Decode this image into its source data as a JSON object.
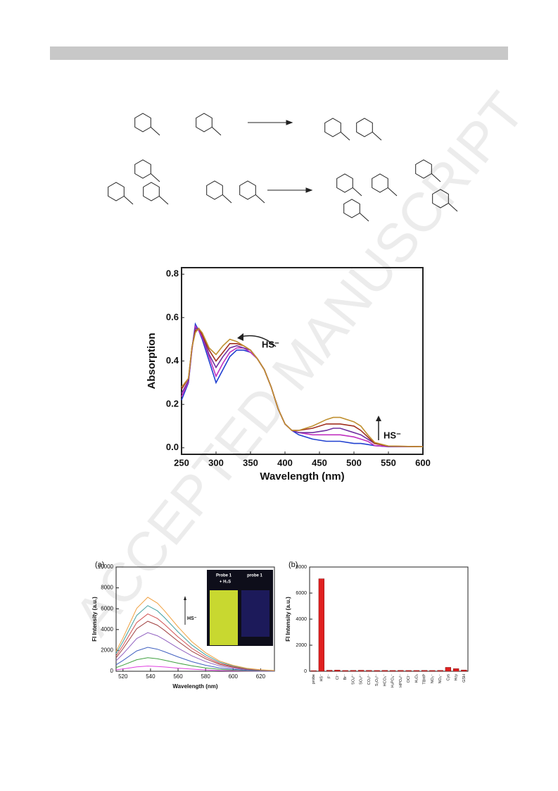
{
  "watermark": "ACCEPTED MANUSCRIPT",
  "chart_data": [
    {
      "type": "line",
      "x_label": "Wavelength (nm)",
      "y_label": "Absorption",
      "x": [
        250,
        260,
        265,
        270,
        275,
        280,
        290,
        300,
        310,
        320,
        330,
        340,
        350,
        360,
        370,
        380,
        390,
        400,
        410,
        420,
        440,
        460,
        470,
        480,
        500,
        510,
        520,
        530,
        550,
        600
      ],
      "xlim": [
        250,
        600
      ],
      "ylim": [
        -0.03,
        0.83
      ],
      "xticks": [
        250,
        300,
        350,
        400,
        450,
        500,
        550,
        600
      ],
      "yticks": [
        {
          "value": 0,
          "label": "0.0"
        },
        0.2,
        0.4,
        0.6,
        0.8
      ],
      "annotations": [
        "HS⁻",
        "HS⁻"
      ],
      "series": [
        {
          "color": "#2040d0",
          "values": [
            0.22,
            0.3,
            0.45,
            0.57,
            0.54,
            0.5,
            0.4,
            0.3,
            0.36,
            0.42,
            0.45,
            0.45,
            0.44,
            0.41,
            0.36,
            0.28,
            0.18,
            0.11,
            0.08,
            0.06,
            0.04,
            0.03,
            0.03,
            0.03,
            0.02,
            0.02,
            0.015,
            0.01,
            0.005,
            0.005
          ]
        },
        {
          "color": "#c030c0",
          "values": [
            0.235,
            0.305,
            0.45,
            0.56,
            0.54,
            0.51,
            0.42,
            0.33,
            0.39,
            0.44,
            0.46,
            0.46,
            0.44,
            0.41,
            0.36,
            0.28,
            0.18,
            0.11,
            0.08,
            0.07,
            0.06,
            0.06,
            0.06,
            0.06,
            0.05,
            0.04,
            0.03,
            0.01,
            0.006,
            0.005
          ]
        },
        {
          "color": "#7030a0",
          "values": [
            0.25,
            0.31,
            0.46,
            0.55,
            0.55,
            0.52,
            0.43,
            0.37,
            0.42,
            0.46,
            0.47,
            0.46,
            0.45,
            0.41,
            0.36,
            0.28,
            0.18,
            0.11,
            0.08,
            0.07,
            0.07,
            0.08,
            0.09,
            0.09,
            0.07,
            0.06,
            0.04,
            0.02,
            0.007,
            0.005
          ]
        },
        {
          "color": "#a03020",
          "values": [
            0.27,
            0.32,
            0.46,
            0.54,
            0.55,
            0.52,
            0.45,
            0.4,
            0.44,
            0.48,
            0.48,
            0.47,
            0.45,
            0.41,
            0.36,
            0.28,
            0.18,
            0.11,
            0.08,
            0.08,
            0.09,
            0.11,
            0.11,
            0.11,
            0.1,
            0.08,
            0.05,
            0.02,
            0.008,
            0.005
          ]
        },
        {
          "color": "#c09030",
          "values": [
            0.28,
            0.32,
            0.46,
            0.53,
            0.55,
            0.53,
            0.46,
            0.43,
            0.47,
            0.5,
            0.49,
            0.47,
            0.45,
            0.41,
            0.36,
            0.28,
            0.18,
            0.11,
            0.08,
            0.08,
            0.1,
            0.13,
            0.14,
            0.14,
            0.12,
            0.1,
            0.06,
            0.025,
            0.008,
            0.005
          ]
        }
      ]
    },
    {
      "type": "line",
      "panel_label": "(a)",
      "x_label": "Wavelength (nm)",
      "y_label": "FI Intensity (a.u.)",
      "x": [
        515,
        520,
        530,
        538,
        545,
        550,
        560,
        570,
        580,
        590,
        600,
        610,
        620,
        630
      ],
      "xlim": [
        515,
        630
      ],
      "ylim": [
        0,
        10000
      ],
      "xticks": [
        520,
        540,
        560,
        580,
        600,
        620
      ],
      "yticks": [
        0,
        2000,
        4000,
        6000,
        8000,
        10000
      ],
      "annotations": [
        "HS⁻"
      ],
      "inset_labels": [
        "Probe 1",
        "+ H₂S",
        "probe 1"
      ],
      "series": [
        {
          "color": "#e040e0",
          "values": [
            135,
            225,
            425,
            500,
            460,
            410,
            300,
            200,
            125,
            70,
            40,
            20,
            10,
            5
          ]
        },
        {
          "color": "#40a040",
          "values": [
            351,
            585,
            1105,
            1300,
            1196,
            1066,
            780,
            520,
            325,
            182,
            104,
            52,
            26,
            13
          ]
        },
        {
          "color": "#4060c0",
          "values": [
            621,
            1035,
            1955,
            2300,
            2116,
            1886,
            1380,
            920,
            575,
            322,
            184,
            92,
            46,
            23
          ]
        },
        {
          "color": "#9060c0",
          "values": [
            999,
            1665,
            3145,
            3700,
            3404,
            3034,
            2220,
            1480,
            925,
            518,
            296,
            148,
            74,
            37
          ]
        },
        {
          "color": "#a04040",
          "values": [
            1296,
            2160,
            4080,
            4800,
            4416,
            3936,
            2880,
            1920,
            1200,
            672,
            384,
            192,
            96,
            48
          ]
        },
        {
          "color": "#d05050",
          "values": [
            1485,
            2475,
            4675,
            5500,
            5060,
            4510,
            3300,
            2200,
            1375,
            770,
            440,
            220,
            110,
            55
          ]
        },
        {
          "color": "#40a0a0",
          "values": [
            1701,
            2835,
            5355,
            6300,
            5796,
            5166,
            3780,
            2520,
            1575,
            882,
            504,
            252,
            126,
            63
          ]
        },
        {
          "color": "#f0a040",
          "values": [
            1917,
            3195,
            6035,
            7100,
            6532,
            5822,
            4260,
            2840,
            1775,
            994,
            568,
            284,
            142,
            71
          ]
        }
      ]
    },
    {
      "type": "bar",
      "panel_label": "(b)",
      "y_label": "FI Intensity (a.u.)",
      "color": "#e02020",
      "categories": [
        "probe",
        "HS⁻",
        "F⁻",
        "Cl⁻",
        "Br⁻",
        "SO₄²⁻",
        "SO₃²⁻",
        "CO₃²⁻",
        "S₂O₃²⁻",
        "HCO₃⁻",
        "H₂PO₄⁻",
        "HPO₄²⁻",
        "OCl⁻",
        "H₂O₂",
        "TBHP",
        "NO₂⁻",
        "NO₃⁻",
        "Cys",
        "Hcy",
        "GSH"
      ],
      "values": [
        50,
        7100,
        80,
        90,
        60,
        70,
        80,
        70,
        60,
        70,
        60,
        70,
        60,
        60,
        70,
        60,
        70,
        300,
        200,
        100
      ],
      "ylim": [
        0,
        8000
      ],
      "yticks": [
        0,
        2000,
        4000,
        6000,
        8000
      ]
    }
  ]
}
